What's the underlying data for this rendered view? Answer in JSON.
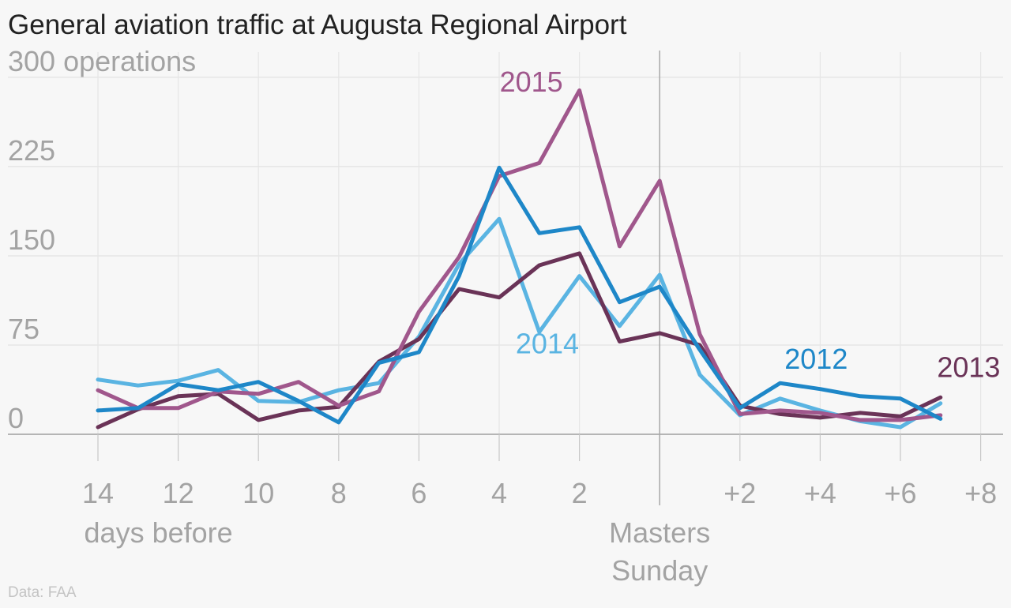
{
  "source": "Data: FAA",
  "chart_data": {
    "type": "line",
    "title": "General aviation traffic at Augusta Regional Airport",
    "ylabel": "operations",
    "ylim": [
      0,
      300
    ],
    "yticks": [
      0,
      75,
      150,
      225,
      300
    ],
    "ytick_labels": [
      "0",
      "75",
      "150",
      "225",
      "300 operations"
    ],
    "xlim": [
      -14,
      8
    ],
    "xticks": [
      -14,
      -12,
      -10,
      -8,
      -6,
      -4,
      -2,
      2,
      4,
      6,
      8
    ],
    "xtick_labels": [
      "14",
      "12",
      "10",
      "8",
      "6",
      "4",
      "2",
      "+2",
      "+4",
      "+6",
      "+8"
    ],
    "x_group_labels": [
      {
        "x": -12,
        "text": "days before"
      },
      {
        "x": 0,
        "text": "Masters Sunday"
      }
    ],
    "reference_line_x": 0,
    "grid": true,
    "x": [
      -14,
      -13,
      -12,
      -11,
      -10,
      -9,
      -8,
      -7,
      -6,
      -5,
      -4,
      -3,
      -2,
      -1,
      0,
      1,
      2,
      3,
      4,
      5,
      6,
      7
    ],
    "series": [
      {
        "name": "2014",
        "color": "#5ab4e2",
        "label_x": -2.8,
        "label_y": 68,
        "values": [
          46,
          41,
          45,
          54,
          28,
          27,
          37,
          43,
          82,
          143,
          181,
          86,
          133,
          91,
          134,
          50,
          16,
          30,
          20,
          11,
          6,
          26
        ]
      },
      {
        "name": "2013",
        "color": "#6a3357",
        "label_x": 7.7,
        "label_y": 48,
        "values": [
          6,
          21,
          32,
          34,
          12,
          20,
          23,
          61,
          80,
          122,
          115,
          142,
          152,
          78,
          85,
          75,
          24,
          17,
          14,
          18,
          15,
          31
        ]
      },
      {
        "name": "2015",
        "color": "#a0578c",
        "label_x": -3.2,
        "label_y": 288,
        "values": [
          37,
          22,
          22,
          36,
          34,
          44,
          24,
          36,
          103,
          149,
          217,
          228,
          289,
          158,
          213,
          84,
          17,
          20,
          18,
          12,
          12,
          16
        ]
      },
      {
        "name": "2012",
        "color": "#1e87c8",
        "label_x": 3.9,
        "label_y": 55,
        "values": [
          20,
          22,
          42,
          37,
          44,
          28,
          10,
          60,
          69,
          133,
          224,
          169,
          174,
          111,
          124,
          71,
          22,
          43,
          38,
          32,
          30,
          13
        ]
      }
    ]
  }
}
